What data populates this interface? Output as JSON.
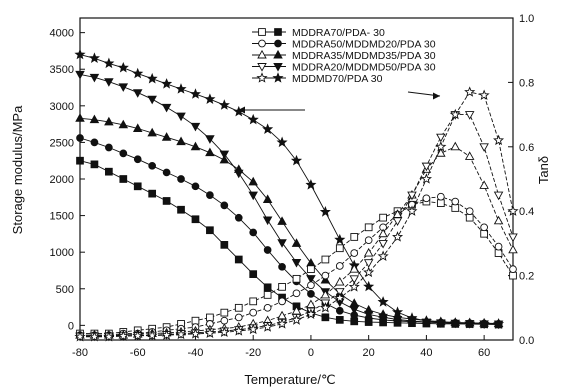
{
  "chart_data": {
    "type": "line",
    "xlabel": "Temperature/℃",
    "ylabel_left": "Storage modulus/MPa",
    "ylabel_right": "Tanδ",
    "xlim": [
      -80,
      70
    ],
    "ylim_left": [
      -200,
      4200
    ],
    "ylim_right": [
      0.0,
      1.0
    ],
    "x_ticks": [
      -80,
      -60,
      -40,
      -20,
      0,
      20,
      40,
      60
    ],
    "y_left_ticks": [
      0,
      500,
      1000,
      1500,
      2000,
      2500,
      3000,
      3500,
      4000
    ],
    "y_right_ticks": [
      "0.0",
      "0.2",
      "0.4",
      "0.6",
      "0.8",
      "1.0"
    ],
    "grid": false,
    "legend_position": "top-right",
    "legend": [
      "MDDRA70/PDA- 30",
      "MDDRA50/MDDMD20/PDA 30",
      "MDDRA35/MDDMD35/PDA 30",
      "MDDRA20/MDDMD50/PDA 30",
      "MDDMD70/PDA 30"
    ],
    "modulus_series": [
      {
        "marker": "square",
        "x": [
          -80,
          -75,
          -70,
          -65,
          -60,
          -55,
          -50,
          -45,
          -40,
          -35,
          -30,
          -25,
          -20,
          -15,
          -10,
          -5,
          0,
          5,
          10,
          15,
          20,
          25,
          30,
          35,
          40,
          45,
          50,
          55,
          60,
          65
        ],
        "values": [
          2250,
          2200,
          2100,
          2000,
          1900,
          1800,
          1700,
          1580,
          1450,
          1300,
          1100,
          900,
          700,
          520,
          380,
          260,
          170,
          110,
          75,
          55,
          45,
          40,
          35,
          30,
          25,
          22,
          20,
          18,
          15,
          12
        ]
      },
      {
        "marker": "circle",
        "x": [
          -80,
          -75,
          -70,
          -65,
          -60,
          -55,
          -50,
          -45,
          -40,
          -35,
          -30,
          -25,
          -20,
          -15,
          -10,
          -5,
          0,
          5,
          10,
          15,
          20,
          25,
          30,
          35,
          40,
          45,
          50,
          55,
          60,
          65
        ],
        "values": [
          2560,
          2500,
          2430,
          2350,
          2270,
          2180,
          2090,
          2000,
          1900,
          1780,
          1640,
          1470,
          1270,
          1030,
          800,
          600,
          430,
          300,
          200,
          140,
          100,
          75,
          60,
          50,
          45,
          40,
          35,
          30,
          25,
          20
        ]
      },
      {
        "marker": "triangle",
        "x": [
          -80,
          -75,
          -70,
          -65,
          -60,
          -55,
          -50,
          -45,
          -40,
          -35,
          -30,
          -25,
          -20,
          -15,
          -10,
          -5,
          0,
          5,
          10,
          15,
          20,
          25,
          30,
          35,
          40,
          45,
          50,
          55,
          60,
          65
        ],
        "values": [
          2830,
          2810,
          2780,
          2740,
          2690,
          2630,
          2570,
          2510,
          2440,
          2360,
          2260,
          2130,
          1960,
          1720,
          1420,
          1120,
          850,
          620,
          430,
          300,
          210,
          150,
          110,
          85,
          65,
          50,
          40,
          35,
          30,
          25
        ]
      },
      {
        "marker": "triangle-down",
        "x": [
          -80,
          -75,
          -70,
          -65,
          -60,
          -55,
          -50,
          -45,
          -40,
          -35,
          -30,
          -25,
          -20,
          -15,
          -10,
          -5,
          0,
          5,
          10,
          15,
          20,
          25,
          30,
          35,
          40,
          45,
          50,
          55,
          60,
          65
        ],
        "values": [
          3430,
          3390,
          3330,
          3260,
          3180,
          3090,
          2980,
          2860,
          2720,
          2550,
          2340,
          2080,
          1780,
          1440,
          1130,
          860,
          640,
          460,
          320,
          220,
          150,
          110,
          80,
          60,
          45,
          35,
          30,
          25,
          20,
          18
        ]
      },
      {
        "marker": "star",
        "x": [
          -80,
          -75,
          -70,
          -65,
          -60,
          -55,
          -50,
          -45,
          -40,
          -35,
          -30,
          -25,
          -20,
          -15,
          -10,
          -5,
          0,
          5,
          10,
          15,
          20,
          25,
          30,
          35,
          40,
          45,
          50,
          55,
          60,
          65
        ],
        "values": [
          3700,
          3650,
          3580,
          3520,
          3440,
          3370,
          3300,
          3230,
          3160,
          3090,
          3010,
          2920,
          2810,
          2680,
          2500,
          2250,
          1920,
          1550,
          1170,
          820,
          530,
          320,
          180,
          100,
          60,
          40,
          30,
          25,
          20,
          18
        ]
      }
    ],
    "tan_series": [
      {
        "marker": "square",
        "x": [
          -80,
          -75,
          -70,
          -65,
          -60,
          -55,
          -50,
          -45,
          -40,
          -35,
          -30,
          -25,
          -20,
          -15,
          -10,
          -5,
          0,
          5,
          10,
          15,
          20,
          25,
          30,
          35,
          40,
          45,
          50,
          55,
          60,
          65,
          70
        ],
        "values": [
          0.02,
          0.02,
          0.02,
          0.025,
          0.03,
          0.035,
          0.04,
          0.05,
          0.06,
          0.07,
          0.085,
          0.1,
          0.12,
          0.14,
          0.165,
          0.19,
          0.22,
          0.25,
          0.285,
          0.32,
          0.35,
          0.38,
          0.4,
          0.42,
          0.43,
          0.425,
          0.41,
          0.38,
          0.33,
          0.27,
          0.2
        ]
      },
      {
        "marker": "circle",
        "x": [
          -80,
          -75,
          -70,
          -65,
          -60,
          -55,
          -50,
          -45,
          -40,
          -35,
          -30,
          -25,
          -20,
          -15,
          -10,
          -5,
          0,
          5,
          10,
          15,
          20,
          25,
          30,
          35,
          40,
          45,
          50,
          55,
          60,
          65,
          70
        ],
        "values": [
          0.015,
          0.015,
          0.015,
          0.02,
          0.02,
          0.025,
          0.03,
          0.035,
          0.04,
          0.05,
          0.06,
          0.07,
          0.085,
          0.1,
          0.12,
          0.145,
          0.17,
          0.2,
          0.23,
          0.27,
          0.31,
          0.35,
          0.39,
          0.42,
          0.44,
          0.445,
          0.43,
          0.4,
          0.35,
          0.29,
          0.22
        ]
      },
      {
        "marker": "triangle",
        "x": [
          -80,
          -75,
          -70,
          -65,
          -60,
          -55,
          -50,
          -45,
          -40,
          -35,
          -30,
          -25,
          -20,
          -15,
          -10,
          -5,
          0,
          5,
          10,
          15,
          20,
          25,
          30,
          35,
          40,
          45,
          50,
          55,
          60,
          65,
          70
        ],
        "values": [
          0.015,
          0.015,
          0.015,
          0.015,
          0.018,
          0.02,
          0.022,
          0.025,
          0.028,
          0.032,
          0.036,
          0.04,
          0.05,
          0.06,
          0.075,
          0.09,
          0.11,
          0.14,
          0.18,
          0.22,
          0.27,
          0.33,
          0.39,
          0.45,
          0.53,
          0.58,
          0.6,
          0.57,
          0.48,
          0.37,
          0.28
        ]
      },
      {
        "marker": "triangle-down",
        "x": [
          -80,
          -75,
          -70,
          -65,
          -60,
          -55,
          -50,
          -45,
          -40,
          -35,
          -30,
          -25,
          -20,
          -15,
          -10,
          -5,
          0,
          5,
          10,
          15,
          20,
          25,
          30,
          35,
          40,
          45,
          50,
          55,
          60,
          65,
          70
        ],
        "values": [
          0.012,
          0.012,
          0.012,
          0.013,
          0.014,
          0.015,
          0.017,
          0.02,
          0.022,
          0.025,
          0.028,
          0.032,
          0.038,
          0.045,
          0.055,
          0.07,
          0.09,
          0.115,
          0.15,
          0.19,
          0.24,
          0.3,
          0.37,
          0.45,
          0.54,
          0.63,
          0.7,
          0.7,
          0.6,
          0.45,
          0.32
        ]
      },
      {
        "marker": "star",
        "x": [
          -80,
          -75,
          -70,
          -65,
          -60,
          -55,
          -50,
          -45,
          -40,
          -35,
          -30,
          -25,
          -20,
          -15,
          -10,
          -5,
          0,
          5,
          10,
          15,
          20,
          25,
          30,
          35,
          40,
          45,
          50,
          55,
          60,
          65,
          70
        ],
        "values": [
          0.01,
          0.01,
          0.01,
          0.012,
          0.013,
          0.014,
          0.015,
          0.017,
          0.019,
          0.021,
          0.024,
          0.028,
          0.033,
          0.04,
          0.05,
          0.062,
          0.08,
          0.1,
          0.13,
          0.165,
          0.21,
          0.26,
          0.32,
          0.4,
          0.5,
          0.6,
          0.7,
          0.77,
          0.76,
          0.62,
          0.4
        ]
      }
    ]
  }
}
